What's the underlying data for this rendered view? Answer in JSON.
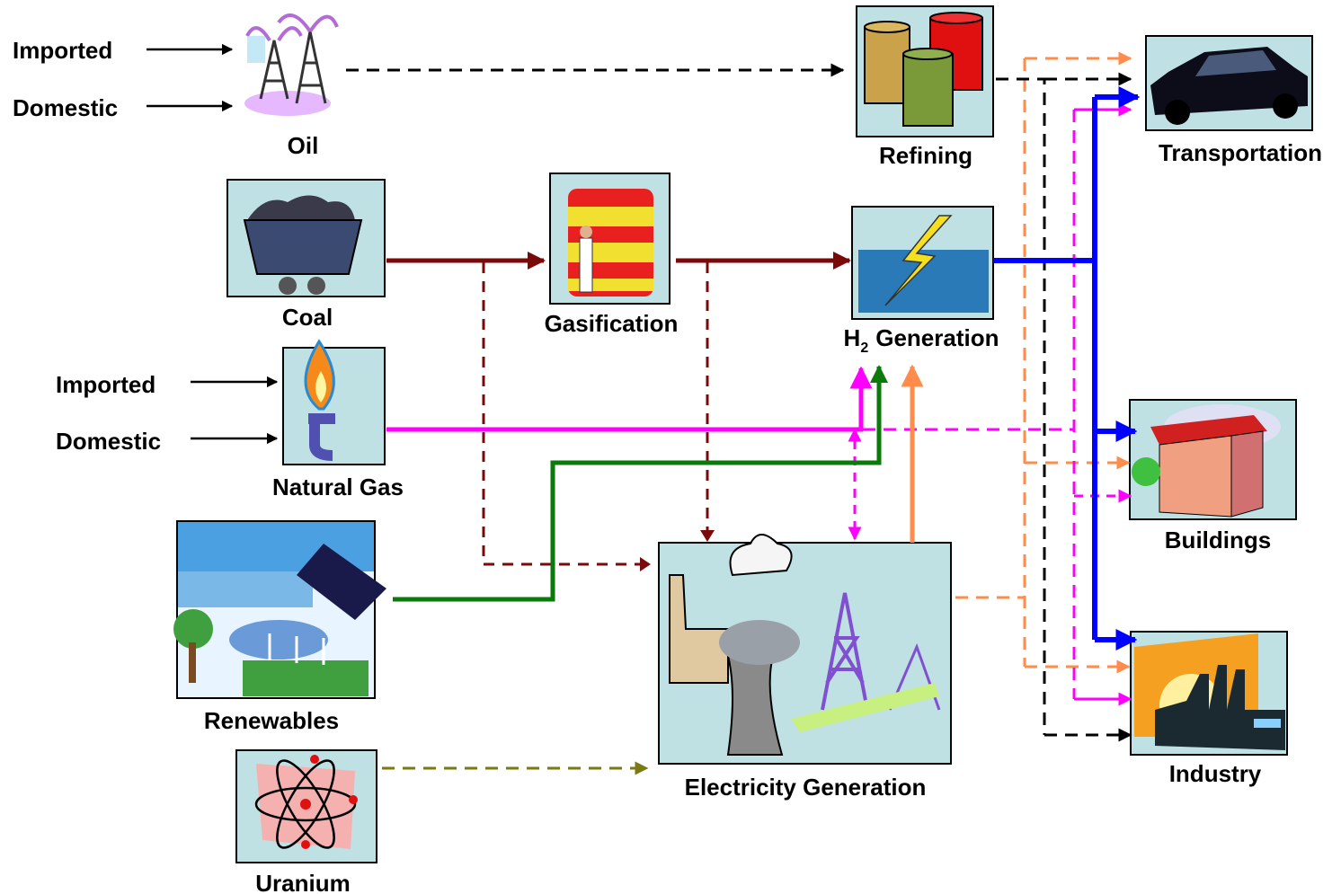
{
  "nodes": {
    "oil": {
      "label": "Oil",
      "inputs": [
        "Imported",
        "Domestic"
      ]
    },
    "refining": {
      "label": "Refining"
    },
    "transportation": {
      "label": "Transportation"
    },
    "coal": {
      "label": "Coal"
    },
    "gasification": {
      "label": "Gasification"
    },
    "h2_generation": {
      "prefix": "H",
      "subscript": "2",
      "suffix": "Generation"
    },
    "natural_gas": {
      "label": "Natural Gas",
      "inputs": [
        "Imported",
        "Domestic"
      ]
    },
    "buildings": {
      "label": "Buildings"
    },
    "renewables": {
      "label": "Renewables"
    },
    "electricity_generation": {
      "label": "Electricity Generation"
    },
    "industry": {
      "label": "Industry"
    },
    "uranium": {
      "label": "Uranium"
    }
  }
}
